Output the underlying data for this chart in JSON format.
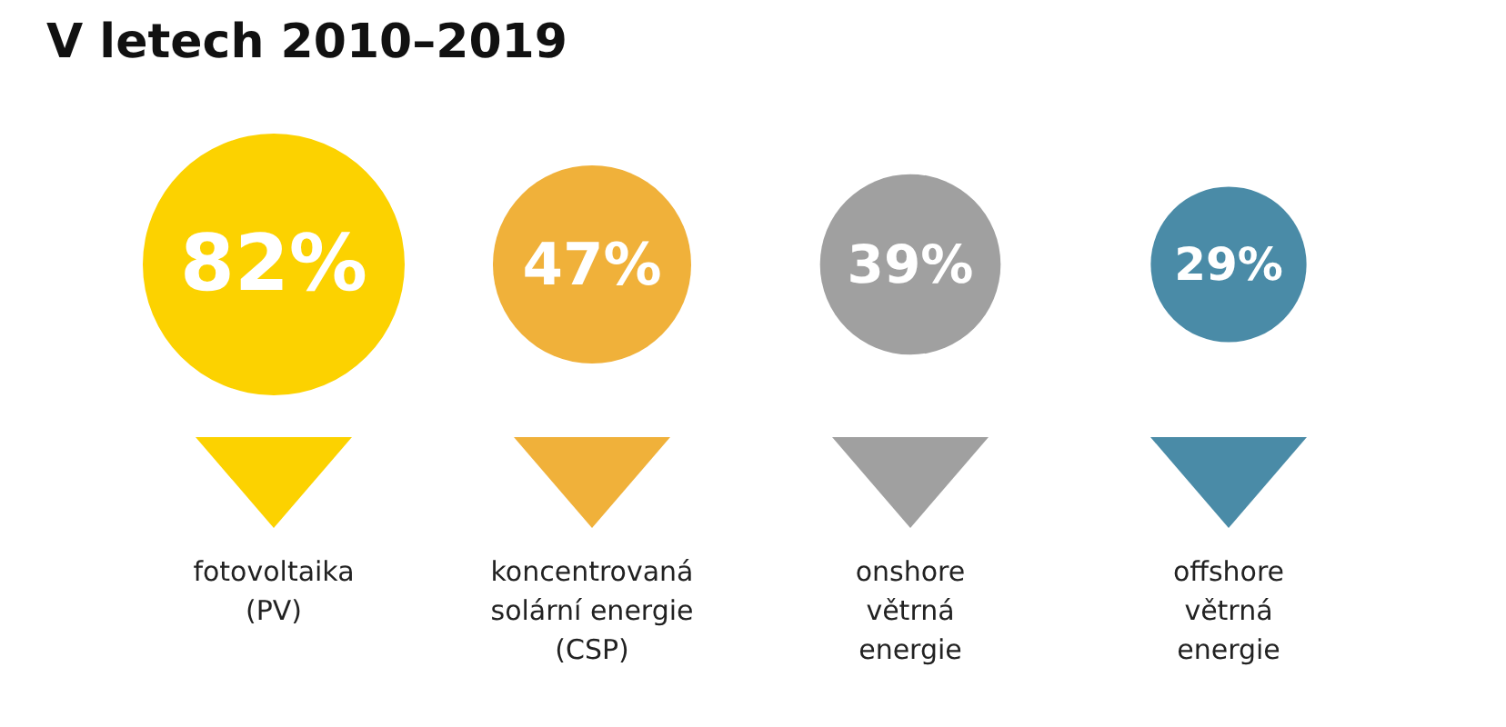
{
  "chart_data": {
    "type": "other",
    "title": "V letech 2010–2019",
    "categories": [
      "fotovoltaika\n(PV)",
      "koncentrovaná\nsolární energie\n(CSP)",
      "onshore\nvětrná\nenergie",
      "offshore\nvětrná\nenergie"
    ],
    "values": [
      82,
      47,
      39,
      29
    ],
    "value_labels": [
      "82%",
      "47%",
      "39%",
      "29%"
    ],
    "colors": [
      "#fcd200",
      "#f0b13a",
      "#a0a0a0",
      "#4a8ba7"
    ]
  }
}
